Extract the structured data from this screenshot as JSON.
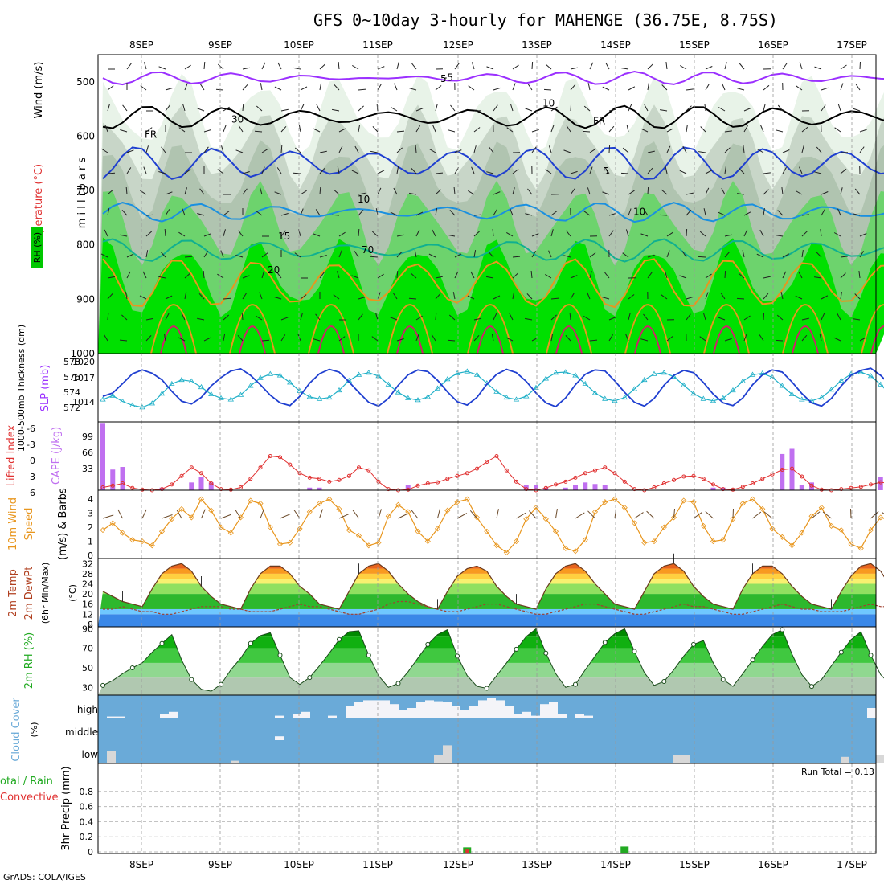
{
  "title": "GFS 0~10day 3-hourly for MAHENGE (36.75E, 8.75S)",
  "credit": "GrADS: COLA/IGES",
  "dates": [
    "8SEP",
    "9SEP",
    "10SEP",
    "11SEP",
    "12SEP",
    "13SEP",
    "14SEP",
    "15SEP",
    "16SEP",
    "17SEP"
  ],
  "colors": {
    "purple": "#9b30ff",
    "blue": "#1f3fd0",
    "cyan": "#20b0c8",
    "red": "#e03030",
    "orange": "#e8961e",
    "green": "#22aa22",
    "skyblue": "#6aaad8",
    "rhgreen": "#00c800"
  },
  "chart_data": [
    {
      "type": "heatmap",
      "name": "upper-air cross section",
      "ylabel": "m i l l i b a r s",
      "side_labels": {
        "rh": "RH (%)",
        "temp": "Temperature (°C)",
        "wind": "Wind (m/s)"
      },
      "ylim": [
        1000,
        450
      ],
      "yticks": [
        500,
        600,
        700,
        800,
        900,
        1000
      ],
      "contour_labels": [
        "5",
        "5",
        "10",
        "10",
        "15",
        "20",
        "FR",
        "FR",
        "-5",
        "10",
        "30",
        "70"
      ],
      "isotherms": [
        {
          "label": "-5",
          "base_mb": 493,
          "amp": 6
        },
        {
          "label": "FR",
          "base_mb": 565,
          "amp": 15
        },
        {
          "label": "5",
          "base_mb": 650,
          "amp": 25
        },
        {
          "label": "10",
          "base_mb": 740,
          "amp": 12
        },
        {
          "label": "15",
          "base_mb": 810,
          "amp": 15
        },
        {
          "label": "20",
          "base_mb": 870,
          "amp": 40
        }
      ]
    },
    {
      "type": "line",
      "name": "thickness and SLP",
      "ylabel_left": "1000-500mb Thickness (dm)",
      "ylabel_right": "SLP (mb)",
      "left_ticks": [
        "578",
        "576",
        "574",
        "572"
      ],
      "right_ticks": [
        "1020",
        "1017",
        "1014"
      ],
      "series": [
        {
          "name": "Thickness",
          "values": [
            573.2,
            573.8,
            572.9,
            572.3,
            572.0,
            572.6,
            574.1,
            575.6,
            576.2,
            576.0,
            575.1,
            574.0,
            573.4,
            573.2,
            573.9,
            575.3,
            576.5,
            577.1,
            576.9,
            575.8,
            574.5,
            573.6,
            573.3,
            573.5,
            574.6,
            576.1,
            577.0,
            577.3,
            576.8,
            575.5,
            574.3,
            573.4,
            573.1,
            573.6,
            574.9,
            576.3,
            577.2,
            577.5,
            577.0,
            575.7,
            574.4,
            573.5,
            573.2,
            573.7,
            575.0,
            576.4,
            577.3,
            577.4,
            576.9,
            575.6,
            574.2,
            573.3,
            573.0,
            573.5,
            574.8,
            576.2,
            577.1,
            577.3,
            576.7,
            575.4,
            574.1,
            573.3,
            573.0,
            573.4,
            574.6,
            576.0,
            577.0,
            577.2,
            576.6,
            575.3,
            574.0,
            573.2,
            573.0,
            573.5,
            574.7,
            576.1,
            577.1,
            577.4,
            576.8,
            575.5,
            574.0,
            573.2
          ]
        },
        {
          "name": "SLP",
          "values": [
            1015.2,
            1015.8,
            1017.5,
            1019.3,
            1020.0,
            1019.4,
            1018.2,
            1016.1,
            1014.3,
            1013.8,
            1015.0,
            1017.1,
            1018.6,
            1019.8,
            1020.2,
            1019.0,
            1017.3,
            1015.4,
            1014.0,
            1013.5,
            1015.2,
            1017.6,
            1019.3,
            1020.1,
            1019.6,
            1017.8,
            1015.9,
            1014.1,
            1013.4,
            1014.8,
            1017.2,
            1019.1,
            1020.0,
            1019.7,
            1018.1,
            1016.0,
            1014.2,
            1013.6,
            1015.0,
            1017.4,
            1019.2,
            1020.1,
            1019.5,
            1017.9,
            1015.8,
            1014.0,
            1013.3,
            1014.9,
            1017.3,
            1019.2,
            1020.0,
            1019.8,
            1018.0,
            1015.9,
            1014.1,
            1013.4,
            1014.8,
            1017.2,
            1019.0,
            1019.9,
            1019.5,
            1017.7,
            1015.6,
            1014.0,
            1013.5,
            1014.9,
            1017.3,
            1019.1,
            1020.0,
            1019.6,
            1017.8,
            1015.7,
            1014.0,
            1013.4,
            1014.8,
            1017.1,
            1019.0,
            1019.9,
            1020.3,
            1019.0,
            1017.2,
            1021.0
          ]
        }
      ]
    },
    {
      "type": "bar",
      "name": "CAPE and Lifted Index",
      "ylabel_left": "Lifted Index",
      "ylabel_right": "CAPE (J/kg)",
      "left_ticks": [
        "-6",
        "-3",
        "0",
        "3",
        "6"
      ],
      "right_ticks": [
        "99",
        "66",
        "33"
      ],
      "series": [
        {
          "name": "CAPE",
          "values": [
            130,
            40,
            45,
            0,
            0,
            0,
            5,
            0,
            0,
            15,
            25,
            15,
            0,
            0,
            0,
            0,
            0,
            0,
            0,
            0,
            0,
            5,
            5,
            0,
            0,
            0,
            0,
            0,
            0,
            0,
            0,
            10,
            0,
            0,
            0,
            0,
            0,
            0,
            0,
            0,
            0,
            0,
            0,
            10,
            10,
            5,
            0,
            5,
            10,
            15,
            12,
            10,
            0,
            0,
            0,
            0,
            0,
            0,
            0,
            0,
            0,
            0,
            5,
            5,
            0,
            0,
            0,
            0,
            0,
            70,
            80,
            10,
            15,
            0,
            0,
            0,
            0,
            0,
            0,
            25,
            15,
            10,
            10,
            0
          ]
        },
        {
          "name": "Lifted Index",
          "values": [
            5.5,
            5.2,
            4.8,
            5.6,
            5.9,
            6.0,
            5.8,
            5.0,
            3.5,
            2.0,
            3.0,
            4.8,
            5.8,
            5.9,
            5.5,
            4.0,
            2.0,
            0.0,
            0.2,
            1.5,
            3.0,
            3.8,
            4.0,
            4.5,
            4.2,
            3.5,
            2.0,
            2.5,
            4.5,
            5.8,
            6.0,
            5.9,
            5.2,
            4.8,
            4.6,
            4.0,
            3.5,
            3.0,
            2.2,
            1.0,
            0.0,
            2.5,
            4.5,
            5.8,
            6.0,
            5.6,
            5.0,
            4.5,
            3.8,
            3.0,
            2.5,
            2.0,
            3.0,
            4.5,
            5.8,
            6.0,
            5.5,
            4.8,
            4.2,
            3.6,
            3.5,
            4.0,
            5.0,
            5.8,
            5.9,
            5.4,
            4.8,
            4.0,
            3.2,
            2.4,
            2.2,
            3.6,
            5.2,
            5.9,
            6.0,
            5.8,
            5.6,
            5.4,
            5.0,
            4.6,
            4.8,
            5.5
          ]
        }
      ]
    },
    {
      "type": "line",
      "name": "10m wind",
      "ylabel": "10m Wind Speed (m/s) & Barbs",
      "ylim": [
        0,
        4.3
      ],
      "yticks": [
        "0",
        "1",
        "2",
        "3",
        "4"
      ],
      "values": [
        1.8,
        2.3,
        1.6,
        1.1,
        1.0,
        0.7,
        1.7,
        2.6,
        3.3,
        2.7,
        4.0,
        3.2,
        2.0,
        1.6,
        2.7,
        3.9,
        3.7,
        2.0,
        0.8,
        0.9,
        1.9,
        3.1,
        3.7,
        4.0,
        3.3,
        1.8,
        1.4,
        0.7,
        0.9,
        2.8,
        3.6,
        3.1,
        1.7,
        1.0,
        1.9,
        3.2,
        3.8,
        4.0,
        2.7,
        1.7,
        0.7,
        0.2,
        1.0,
        2.6,
        3.4,
        2.6,
        1.7,
        0.5,
        0.3,
        1.1,
        3.1,
        3.8,
        4.0,
        3.4,
        2.3,
        0.9,
        1.0,
        2.0,
        2.7,
        3.9,
        3.8,
        2.1,
        1.0,
        1.1,
        2.6,
        3.7,
        4.0,
        3.3,
        1.9,
        1.3,
        0.7,
        1.6,
        2.8,
        3.4,
        2.1,
        1.8,
        0.8,
        0.5,
        1.8,
        2.7,
        2.5,
        2.3
      ]
    },
    {
      "type": "area",
      "name": "2m temperature",
      "ylabel": "2m Temp 2m DewPt (6hr Min/Max) (°C)",
      "ylim": [
        7,
        34
      ],
      "yticks": [
        "32",
        "28",
        "24",
        "20",
        "16",
        "12",
        "8"
      ],
      "series": [
        {
          "name": "2m Temp",
          "values": [
            21,
            19,
            17,
            16,
            15,
            22,
            28,
            31,
            32,
            29,
            23,
            19,
            16,
            15,
            14,
            22,
            28,
            31,
            31,
            28,
            23,
            20,
            16,
            15,
            14,
            21,
            28,
            31,
            32,
            29,
            24,
            20,
            17,
            15,
            14,
            21,
            27,
            30,
            31,
            29,
            23,
            19,
            16,
            15,
            14,
            22,
            28,
            31,
            32,
            29,
            24,
            20,
            16,
            15,
            14,
            21,
            28,
            31,
            32,
            29,
            23,
            19,
            16,
            15,
            14,
            22,
            28,
            31,
            31,
            28,
            23,
            19,
            16,
            15,
            14,
            21,
            27,
            31,
            32,
            29,
            23,
            19,
            16,
            15,
            14,
            22
          ]
        },
        {
          "name": "2m DewPt",
          "values": [
            14,
            14,
            15,
            14,
            13,
            13,
            12,
            12,
            13,
            14,
            15,
            15,
            15,
            14,
            14,
            13,
            13,
            13,
            14,
            15,
            16,
            15,
            15,
            14,
            13,
            12,
            12,
            13,
            14,
            16,
            17,
            17,
            16,
            15,
            14,
            13,
            13,
            14,
            15,
            16,
            16,
            15,
            14,
            13,
            12,
            12,
            13,
            14,
            15,
            16,
            16,
            15,
            14,
            13,
            12,
            12,
            13,
            14,
            15,
            16,
            15,
            15,
            14,
            13,
            12,
            12,
            13,
            14,
            15,
            16,
            15,
            14,
            14,
            13,
            13,
            13,
            14,
            15,
            16,
            15,
            15,
            14
          ]
        }
      ]
    },
    {
      "type": "area",
      "name": "2m relative humidity",
      "ylabel": "2m RH (%)",
      "ylim": [
        22,
        92
      ],
      "yticks": [
        "90",
        "70",
        "50",
        "30"
      ],
      "values": [
        32,
        37,
        44,
        50,
        55,
        66,
        75,
        84,
        58,
        38,
        28,
        26,
        33,
        48,
        60,
        75,
        83,
        86,
        63,
        40,
        33,
        40,
        52,
        65,
        79,
        87,
        88,
        63,
        42,
        30,
        34,
        46,
        60,
        74,
        84,
        89,
        62,
        42,
        31,
        29,
        42,
        55,
        69,
        82,
        90,
        65,
        44,
        30,
        33,
        48,
        62,
        76,
        85,
        90,
        67,
        45,
        32,
        36,
        48,
        62,
        74,
        78,
        55,
        38,
        31,
        44,
        58,
        72,
        84,
        89,
        64,
        43,
        31,
        38,
        52,
        66,
        79,
        87,
        63,
        43,
        33,
        45,
        60,
        75,
        84,
        88,
        63
      ]
    },
    {
      "type": "bar",
      "name": "cloud cover",
      "ylabel": "Cloud Cover (%)",
      "levels": [
        "high",
        "middle",
        "low"
      ],
      "series": [
        {
          "name": "high",
          "values": [
            0,
            6,
            6,
            0,
            0,
            0,
            0,
            20,
            30,
            0,
            0,
            0,
            0,
            0,
            0,
            0,
            0,
            0,
            0,
            0,
            10,
            0,
            20,
            30,
            0,
            0,
            10,
            0,
            60,
            80,
            90,
            90,
            90,
            70,
            40,
            50,
            80,
            90,
            85,
            80,
            60,
            40,
            60,
            90,
            100,
            90,
            60,
            20,
            30,
            10,
            70,
            80,
            20,
            0,
            20,
            10,
            0,
            0,
            0,
            0,
            0,
            0,
            0,
            0,
            0,
            0,
            0,
            0,
            0,
            0,
            0,
            0,
            0,
            0,
            0,
            0,
            0,
            0,
            0,
            0,
            0,
            0,
            0,
            0,
            0,
            0,
            0,
            50
          ]
        },
        {
          "name": "middle",
          "values": [
            0,
            0,
            0,
            0,
            0,
            0,
            0,
            0,
            0,
            0,
            0,
            0,
            0,
            0,
            0,
            0,
            0,
            0,
            0,
            0,
            20,
            0,
            0,
            0,
            0,
            0,
            0,
            0,
            0,
            0,
            0,
            0,
            0,
            0,
            0,
            0,
            0,
            0,
            0,
            0,
            0,
            0,
            0,
            0,
            0,
            0,
            0,
            0,
            0,
            0,
            0,
            0,
            0,
            0,
            0,
            0,
            0,
            0,
            0,
            0,
            0,
            0,
            0,
            0,
            0,
            0,
            0,
            0,
            0,
            0,
            0,
            0,
            0,
            0,
            0,
            0,
            0,
            0,
            0,
            0,
            0,
            0,
            0,
            0,
            0,
            0,
            0,
            0
          ]
        },
        {
          "name": "low",
          "values": [
            0,
            60,
            0,
            0,
            0,
            0,
            0,
            0,
            0,
            0,
            0,
            0,
            0,
            0,
            0,
            10,
            0,
            0,
            0,
            0,
            0,
            0,
            0,
            0,
            0,
            0,
            0,
            0,
            0,
            0,
            0,
            0,
            0,
            0,
            0,
            0,
            0,
            0,
            40,
            90,
            0,
            0,
            0,
            0,
            0,
            0,
            0,
            0,
            0,
            0,
            0,
            0,
            0,
            0,
            0,
            0,
            0,
            0,
            0,
            0,
            0,
            0,
            0,
            0,
            0,
            40,
            40,
            0,
            0,
            0,
            0,
            0,
            0,
            0,
            0,
            0,
            0,
            0,
            0,
            0,
            0,
            0,
            0,
            0,
            30,
            0,
            0,
            0,
            40
          ]
        }
      ]
    },
    {
      "type": "bar",
      "name": "3hr precipitation",
      "ylabel": "3hr Precip (mm)",
      "legend_total": "otal / Rain",
      "legend_conv": "Convective",
      "run_total": "Run Total = 0.13",
      "ylim": [
        0,
        1
      ],
      "yticks": [
        "0.8",
        "0.6",
        "0.4",
        "0.2",
        "0"
      ],
      "bars": [
        {
          "x_index": 37,
          "total": 0.06,
          "convective": 0.03
        },
        {
          "x_index": 53,
          "total": 0.07,
          "convective": 0.0
        }
      ]
    }
  ]
}
